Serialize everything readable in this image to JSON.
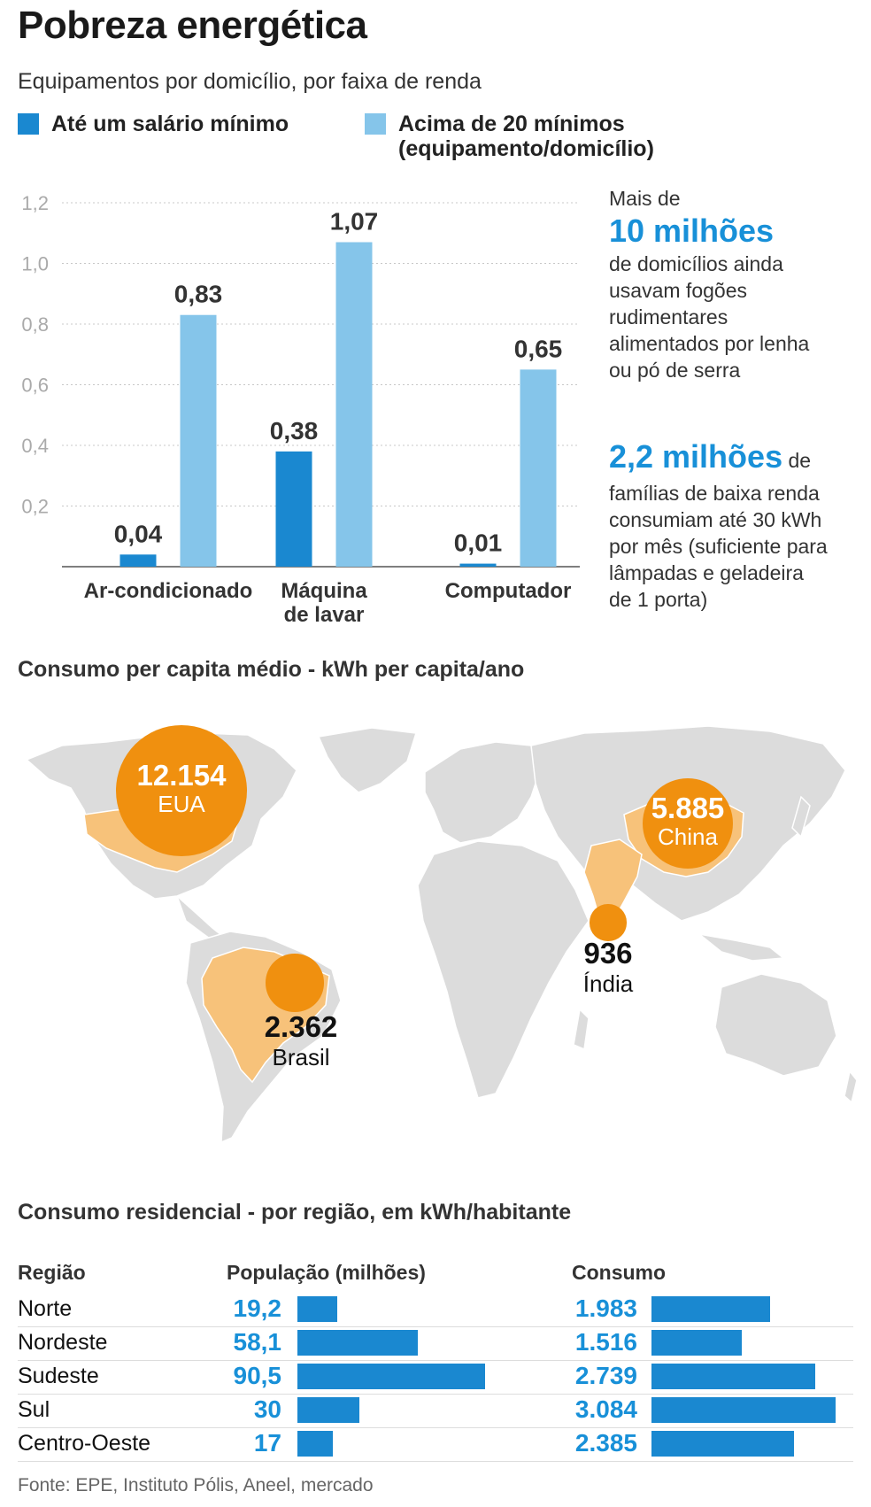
{
  "title": "Pobreza energética",
  "subtitle": "Equipamentos por domicílio, por faixa de renda",
  "colors": {
    "dark_blue": "#1a88d0",
    "light_blue": "#85c5ea",
    "accent_blue": "#1890d8",
    "orange": "#f0900f",
    "light_orange": "#f7c27a",
    "map_gray": "#dcdcdc"
  },
  "legend": {
    "series1": "Até um salário mínimo",
    "series2_line1": "Acima de 20 mínimos",
    "series2_line2": "(equipamento/domicílio)"
  },
  "side_notes": {
    "note1_prefix": "Mais de",
    "note1_big": "10 milhões",
    "note1_lines": [
      "de domicílios ainda",
      "usavam fogões",
      "rudimentares",
      "alimentados por lenha",
      "ou pó de serra"
    ],
    "note2_big": "2,2 milhões",
    "note2_suffix": "de",
    "note2_lines": [
      "famílias de baixa renda",
      "consumiam até 30 kWh",
      "por mês (suficiente para",
      "lâmpadas e geladeira",
      "de 1 porta)"
    ]
  },
  "chart_data": [
    {
      "type": "bar",
      "categories": [
        "Ar-condicionado",
        "Máquina de lavar",
        "Computador"
      ],
      "category_lines": [
        [
          "Ar-condicionado"
        ],
        [
          "Máquina",
          "de lavar"
        ],
        [
          "Computador"
        ]
      ],
      "series": [
        {
          "name": "Até um salário mínimo",
          "values": [
            0.04,
            0.38,
            0.01
          ],
          "labels": [
            "0,04",
            "0,38",
            "0,01"
          ]
        },
        {
          "name": "Acima de 20 mínimos",
          "values": [
            0.83,
            1.07,
            0.65
          ],
          "labels": [
            "0,83",
            "1,07",
            "0,65"
          ]
        }
      ],
      "yticks": [
        "0,2",
        "0,4",
        "0,6",
        "0,8",
        "1,0",
        "1,2"
      ],
      "ytick_values": [
        0.2,
        0.4,
        0.6,
        0.8,
        1.0,
        1.2
      ],
      "ylim": [
        0,
        1.2
      ],
      "grid": true
    },
    {
      "type": "table",
      "title": "Consumo residencial - por região, em kWh/habitante",
      "columns": [
        "Região",
        "População (milhões)",
        "Consumo"
      ],
      "rows": [
        {
          "regiao": "Norte",
          "populacao": "19,2",
          "populacao_value": 19.2,
          "consumo": "1.983",
          "consumo_value": 1983
        },
        {
          "regiao": "Nordeste",
          "populacao": "58,1",
          "populacao_value": 58.1,
          "consumo": "1.516",
          "consumo_value": 1516
        },
        {
          "regiao": "Sudeste",
          "populacao": "90,5",
          "populacao_value": 90.5,
          "consumo": "2.739",
          "consumo_value": 2739
        },
        {
          "regiao": "Sul",
          "populacao": "30",
          "populacao_value": 30,
          "consumo": "3.084",
          "consumo_value": 3084
        },
        {
          "regiao": "Centro-Oeste",
          "populacao": "17",
          "populacao_value": 17,
          "consumo": "2.385",
          "consumo_value": 2385
        }
      ]
    }
  ],
  "map": {
    "title": "Consumo per capita médio - kWh per capita/ano",
    "bubbles": [
      {
        "country": "EUA",
        "value": "12.154",
        "value_num": 12154
      },
      {
        "country": "China",
        "value": "5.885",
        "value_num": 5885
      },
      {
        "country": "Índia",
        "value": "936",
        "value_num": 936
      },
      {
        "country": "Brasil",
        "value": "2.362",
        "value_num": 2362
      }
    ]
  },
  "source": "Fonte: EPE, Instituto Pólis, Aneel, mercado"
}
